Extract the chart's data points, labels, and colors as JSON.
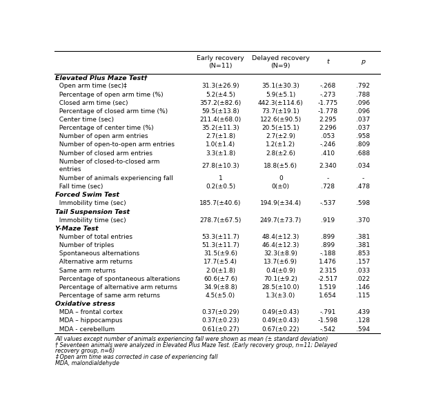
{
  "rows": [
    {
      "label": "Elevated Plus Maze Test†",
      "type": "section"
    },
    {
      "label": "  Open arm time (sec)‡",
      "type": "data",
      "early": "31.3(±26.9)",
      "delayed": "35.1(±30.3)",
      "t": "-.268",
      "p": ".792"
    },
    {
      "label": "  Percentage of open arm time (%)",
      "type": "data",
      "early": "5.2(±4.5)",
      "delayed": "5.9(±5.1)",
      "t": "-.273",
      "p": ".788"
    },
    {
      "label": "  Closed arm time (sec)",
      "type": "data",
      "early": "357.2(±82.6)",
      "delayed": "442.3(±114.6)",
      "t": "-1.775",
      "p": ".096"
    },
    {
      "label": "  Percentage of closed arm time (%)",
      "type": "data",
      "early": "59.5(±13.8)",
      "delayed": "73.7(±19.1)",
      "t": "-1.778",
      "p": ".096"
    },
    {
      "label": "  Center time (sec)",
      "type": "data",
      "early": "211.4(±68.0)",
      "delayed": "122.6(±90.5)",
      "t": "2.295",
      "p": ".037"
    },
    {
      "label": "  Percentage of center time (%)",
      "type": "data",
      "early": "35.2(±11.3)",
      "delayed": "20.5(±15.1)",
      "t": "2.296",
      "p": ".037"
    },
    {
      "label": "  Number of open arm entries",
      "type": "data",
      "early": "2.7(±1.8)",
      "delayed": "2.7(±2.9)",
      "t": ".053",
      "p": ".958"
    },
    {
      "label": "  Number of open-to-open arm entries",
      "type": "data",
      "early": "1.0(±1.4)",
      "delayed": "1.2(±1.2)",
      "t": "-.246",
      "p": ".809"
    },
    {
      "label": "  Number of closed arm entries",
      "type": "data",
      "early": "3.3(±1.8)",
      "delayed": "2.8(±2.6)",
      "t": ".410",
      "p": ".688"
    },
    {
      "label": "  Number of closed-to-closed arm\n  entries",
      "type": "data",
      "multiline": true,
      "early": "27.8(±10.3)",
      "delayed": "18.8(±5.6)",
      "t": "2.340",
      "p": ".034"
    },
    {
      "label": "  Number of animals experiencing fall",
      "type": "data",
      "early": "1",
      "delayed": "0",
      "t": "-",
      "p": "-"
    },
    {
      "label": "  Fall time (sec)",
      "type": "data",
      "early": "0.2(±0.5)",
      "delayed": "0(±0)",
      "t": ".728",
      "p": ".478"
    },
    {
      "label": "Forced Swim Test",
      "type": "section"
    },
    {
      "label": "  Immobility time (sec)",
      "type": "data",
      "early": "185.7(±40.6)",
      "delayed": "194.9(±34.4)",
      "t": "-.537",
      "p": ".598"
    },
    {
      "label": "Tail Suspension Test",
      "type": "section"
    },
    {
      "label": "  Immobility time (sec)",
      "type": "data",
      "early": "278.7(±67.5)",
      "delayed": "249.7(±73.7)",
      "t": ".919",
      "p": ".370"
    },
    {
      "label": "Y-Maze Test",
      "type": "section"
    },
    {
      "label": "  Number of total entries",
      "type": "data",
      "early": "53.3(±11.7)",
      "delayed": "48.4(±12.3)",
      "t": ".899",
      "p": ".381"
    },
    {
      "label": "  Number of triples",
      "type": "data",
      "early": "51.3(±11.7)",
      "delayed": "46.4(±12.3)",
      "t": ".899",
      "p": ".381"
    },
    {
      "label": "  Spontaneous alternations",
      "type": "data",
      "early": "31.5(±9.6)",
      "delayed": "32.3(±8.9)",
      "t": "-.188",
      "p": ".853"
    },
    {
      "label": "  Alternative arm returns",
      "type": "data",
      "early": "17.7(±5.4)",
      "delayed": "13.7(±6.9)",
      "t": "1.476",
      "p": ".157"
    },
    {
      "label": "  Same arm returns",
      "type": "data",
      "early": "2.0(±1.8)",
      "delayed": "0.4(±0.9)",
      "t": "2.315",
      "p": ".033"
    },
    {
      "label": "  Percentage of spontaneous alterations",
      "type": "data",
      "early": "60.6(±7.6)",
      "delayed": "70.1(±9.2)",
      "t": "-2.517",
      "p": ".022"
    },
    {
      "label": "  Percentage of alternative arm returns",
      "type": "data",
      "early": "34.9(±8.8)",
      "delayed": "28.5(±10.0)",
      "t": "1.519",
      "p": ".146"
    },
    {
      "label": "  Percentage of same arm returns",
      "type": "data",
      "early": "4.5(±5.0)",
      "delayed": "1.3(±3.0)",
      "t": "1.654",
      "p": ".115"
    },
    {
      "label": "Oxidative stress",
      "type": "section"
    },
    {
      "label": "  MDA – frontal cortex",
      "type": "data",
      "early": "0.37(±0.29)",
      "delayed": "0.49(±0.43)",
      "t": "-.791",
      "p": ".439"
    },
    {
      "label": "  MDA – hippocampus",
      "type": "data",
      "early": "0.37(±0.23)",
      "delayed": "0.49(±0.43)",
      "t": "-1.598",
      "p": ".128"
    },
    {
      "label": "  MDA - cerebellum",
      "type": "data",
      "early": "0.61(±0.27)",
      "delayed": "0.67(±0.22)",
      "t": "-.542",
      "p": ".594"
    }
  ],
  "footnotes": [
    "All values except number of animals experiencing fall were shown as mean (± standard deviation)",
    "† Seventeen animals were analyzed in Elevated Plus Maze Test. (Early recovery group, n=11; Delayed",
    "recovery group, n=6)",
    "‡ Open arm time was corrected in case of experiencing fall",
    "MDA, malondialdehyde"
  ],
  "header_fs": 6.8,
  "data_fs": 6.5,
  "section_fs": 6.8,
  "footnote_fs": 5.8,
  "figw": 6.13,
  "figh": 6.0,
  "dpi": 100
}
